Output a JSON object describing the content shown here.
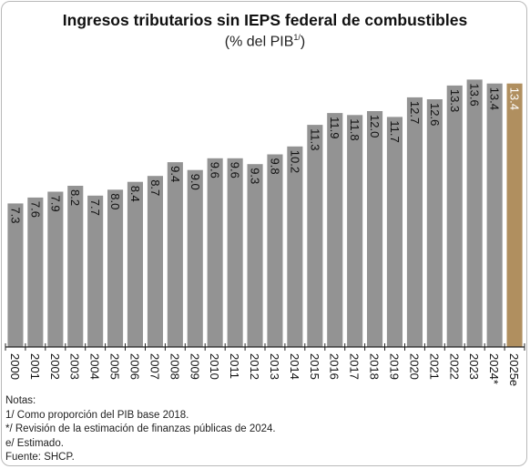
{
  "chart_data": {
    "type": "bar",
    "title": "Ingresos tributarios sin IEPS federal de combustibles",
    "subtitle_main": "(% del PIB",
    "subtitle_sup": "1/",
    "subtitle_end": ")",
    "categories": [
      "2000",
      "2001",
      "2002",
      "2003",
      "2004",
      "2005",
      "2006",
      "2007",
      "2008",
      "2009",
      "2010",
      "2011",
      "2012",
      "2013",
      "2014",
      "2015",
      "2016",
      "2017",
      "2018",
      "2019",
      "2020",
      "2021",
      "2022",
      "2023",
      "2024*",
      "2025e"
    ],
    "values": [
      7.3,
      7.6,
      7.9,
      8.2,
      7.7,
      8.0,
      8.4,
      8.7,
      9.4,
      9.0,
      9.6,
      9.6,
      9.3,
      9.8,
      10.2,
      11.3,
      11.9,
      11.8,
      12.0,
      11.7,
      12.7,
      12.6,
      13.3,
      13.6,
      13.4,
      13.4
    ],
    "value_labels": [
      "7.3",
      "7.6",
      "7.9",
      "8.2",
      "7.7",
      "8.0",
      "8.4",
      "8.7",
      "9.4",
      "9.0",
      "9.6",
      "9.6",
      "9.3",
      "9.8",
      "10.2",
      "11.3",
      "11.9",
      "11.8",
      "12.0",
      "11.7",
      "12.7",
      "12.6",
      "13.3",
      "13.6",
      "13.4",
      "13.4"
    ],
    "highlight_index": 25,
    "colors": {
      "bar": "#939393",
      "highlight": "#b08f5f",
      "label": "#111111",
      "highlight_label": "#ffffff",
      "axis": "#222222"
    },
    "ylim": [
      0,
      14.5
    ],
    "grid": false,
    "legend": "none"
  },
  "notes": [
    "Notas:",
    "1/ Como proporción del PIB base 2018.",
    "*/ Revisión de la estimación de finanzas públicas de 2024.",
    "e/ Estimado.",
    "Fuente: SHCP."
  ]
}
